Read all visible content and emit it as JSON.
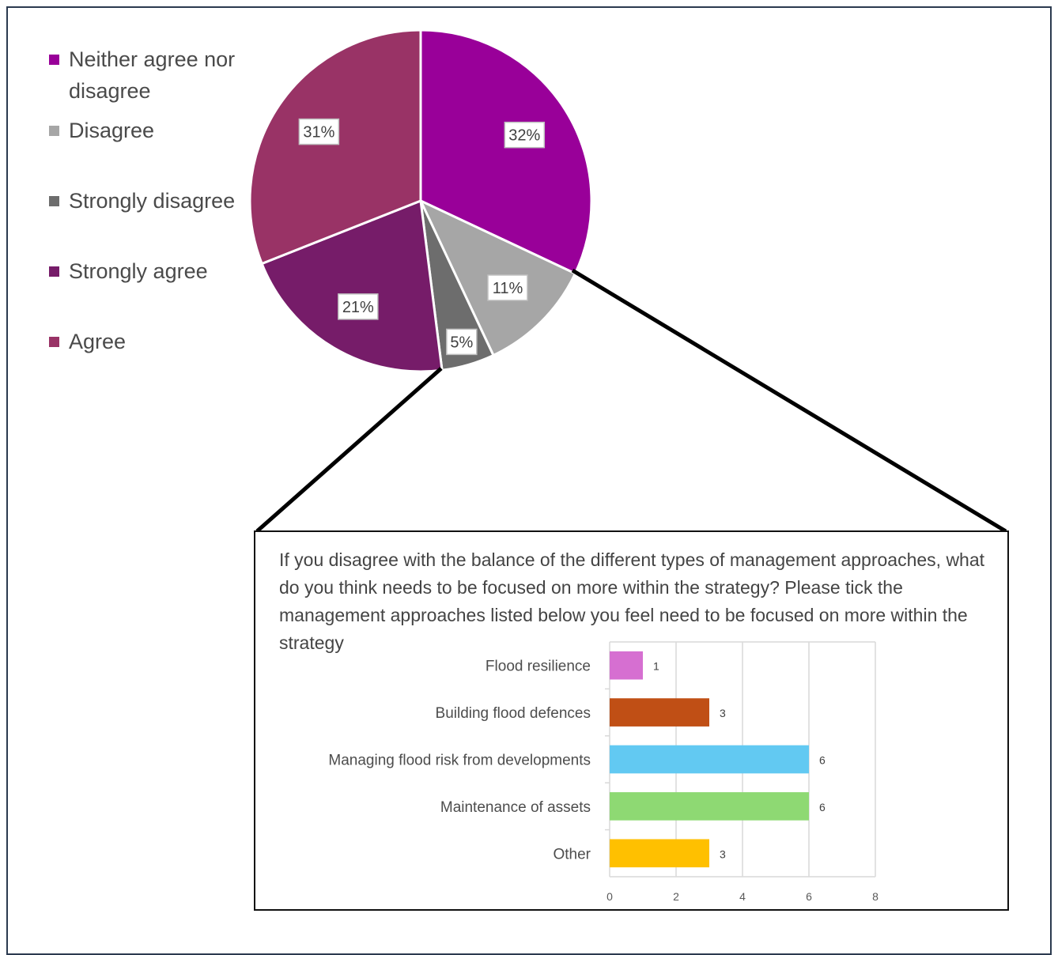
{
  "chart_data": [
    {
      "type": "pie",
      "title": "",
      "legend_position": "left",
      "slices": [
        {
          "label": "Neither agree nor disagree",
          "value": 32,
          "label_text": "32%",
          "color": "#990099"
        },
        {
          "label": "Disagree",
          "value": 11,
          "label_text": "11%",
          "color": "#a6a6a6"
        },
        {
          "label": "Strongly disagree",
          "value": 5,
          "label_text": "5%",
          "color": "#6d6d6d"
        },
        {
          "label": "Strongly agree",
          "value": 21,
          "label_text": "21%",
          "color": "#761c69"
        },
        {
          "label": "Agree",
          "value": 31,
          "label_text": "31%",
          "color": "#993366"
        }
      ]
    },
    {
      "type": "bar",
      "orientation": "horizontal",
      "title": "If you disagree with the balance of the different types of management approaches, what do you think needs to be focused on more within the strategy? Please tick the management approaches listed below you feel need to be focused on more within the strategy",
      "categories": [
        "Flood resilience",
        "Building flood defences",
        "Managing flood risk from developments",
        "Maintenance of assets",
        "Other"
      ],
      "values": [
        1,
        3,
        6,
        6,
        3
      ],
      "colors": [
        "#d66fd1",
        "#c04f15",
        "#62c9f2",
        "#8ed973",
        "#ffc000"
      ],
      "xlim": [
        0,
        8
      ],
      "xticks": [
        0,
        2,
        4,
        6,
        8
      ],
      "grid": true
    }
  ]
}
